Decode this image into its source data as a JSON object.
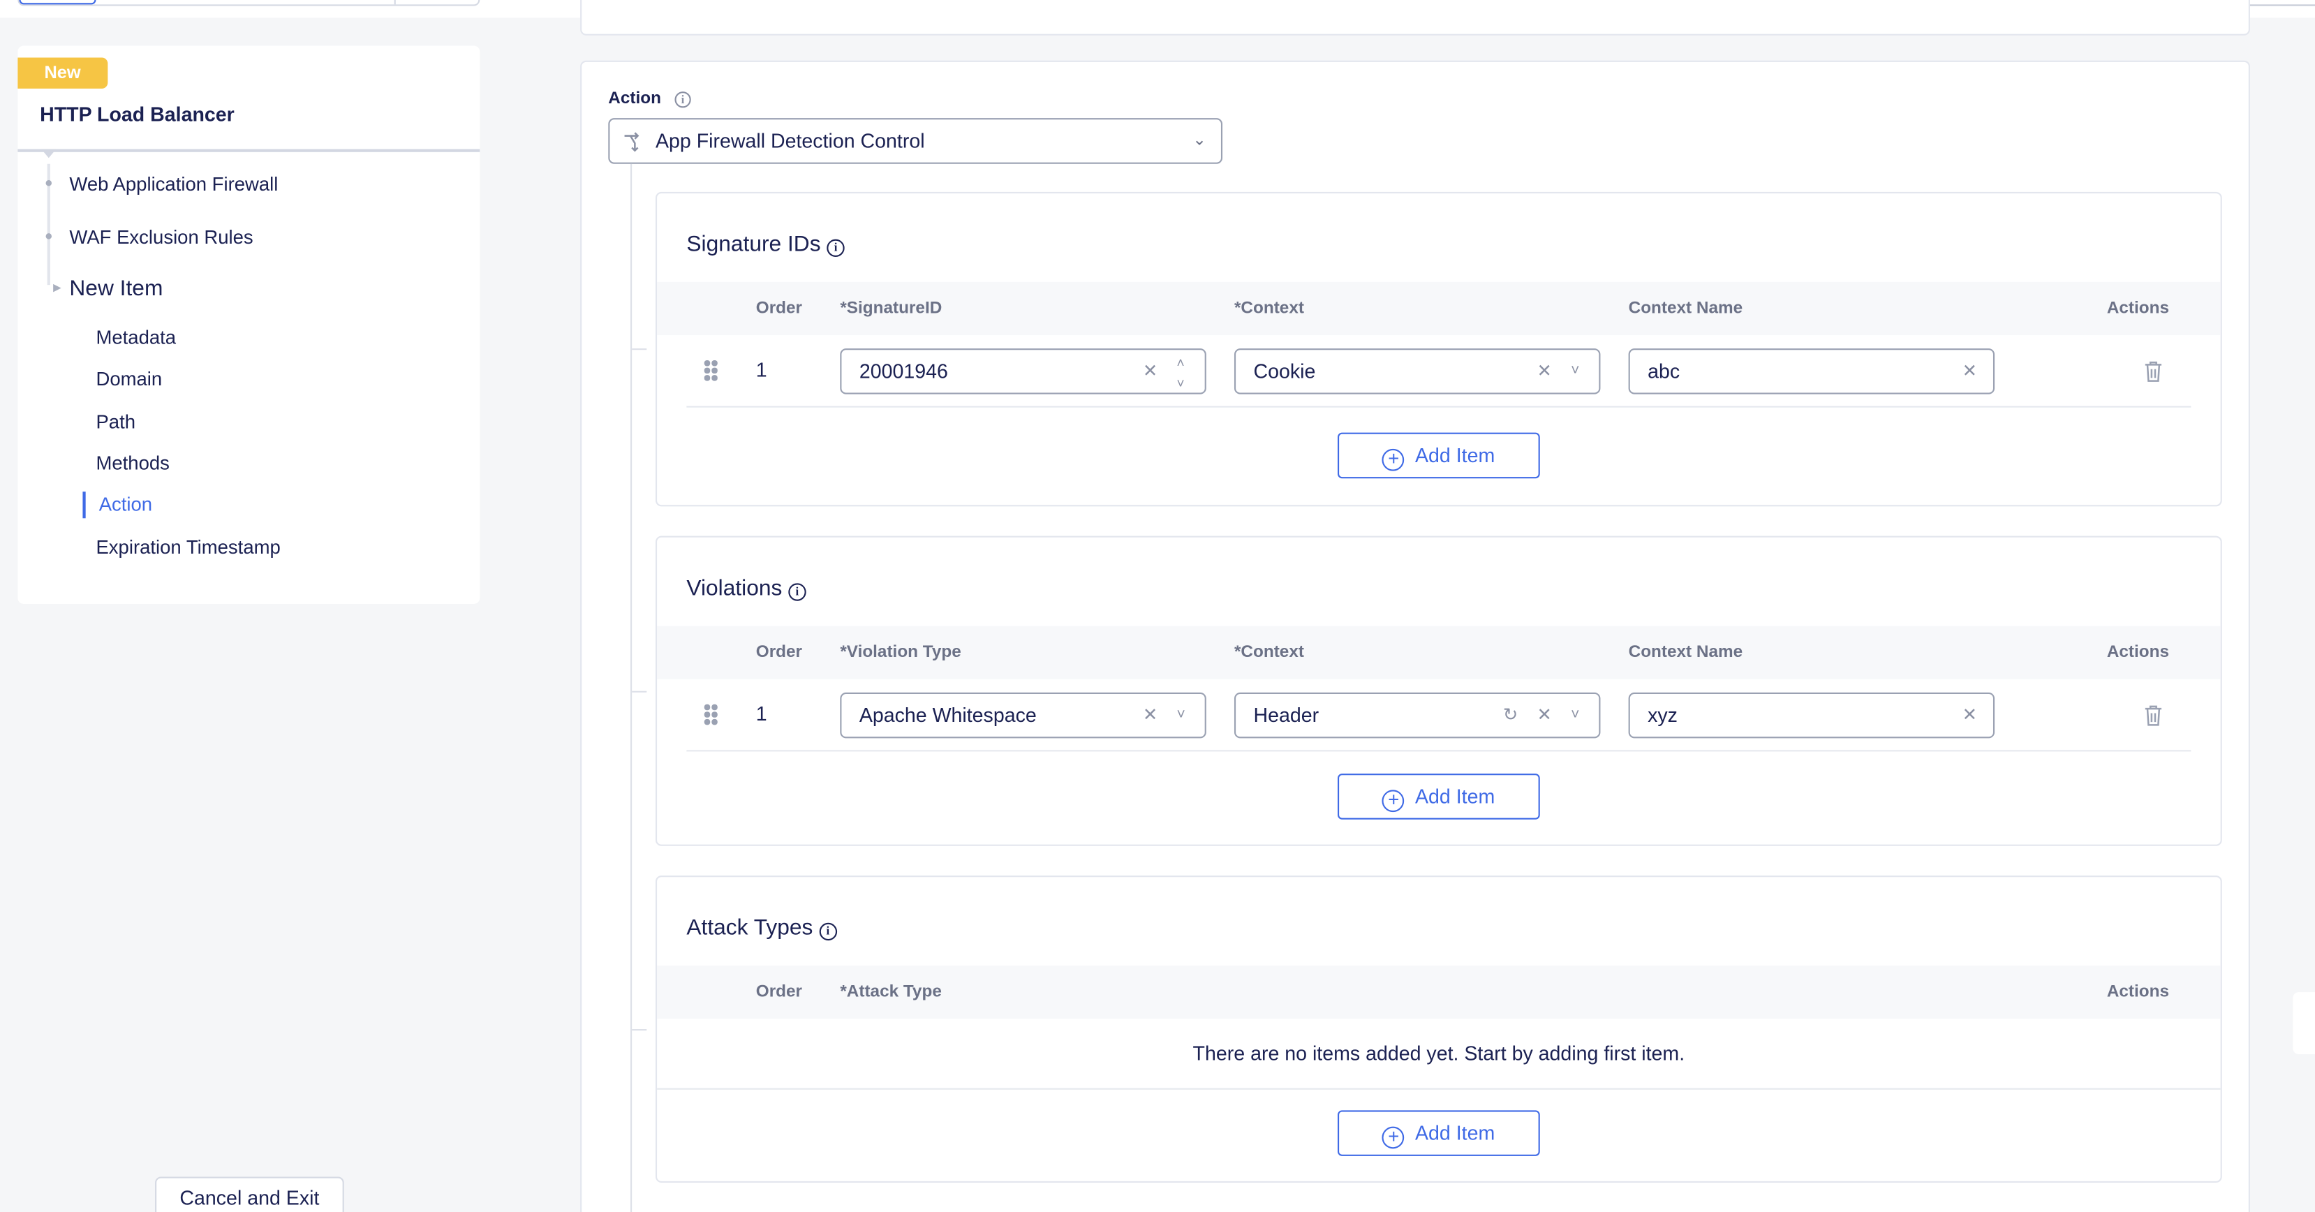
{
  "sidebar": {
    "badge": "New",
    "title": "HTTP Load Balancer",
    "items": [
      {
        "label": "Web Application Firewall"
      },
      {
        "label": "WAF Exclusion Rules"
      },
      {
        "label": "New Item"
      }
    ],
    "sub_items": [
      {
        "label": "Metadata"
      },
      {
        "label": "Domain"
      },
      {
        "label": "Path"
      },
      {
        "label": "Methods"
      },
      {
        "label": "Action",
        "active": true
      },
      {
        "label": "Expiration Timestamp"
      }
    ],
    "cancel_label": "Cancel and Exit"
  },
  "action": {
    "label": "Action",
    "value": "App Firewall Detection Control"
  },
  "signature_ids": {
    "title": "Signature IDs",
    "columns": [
      "Order",
      "*SignatureID",
      "*Context",
      "Context Name",
      "Actions"
    ],
    "rows": [
      {
        "order": "1",
        "signature_id": "20001946",
        "context": "Cookie",
        "context_name": "abc"
      }
    ],
    "add_label": "Add Item"
  },
  "violations": {
    "title": "Violations",
    "columns": [
      "Order",
      "*Violation Type",
      "*Context",
      "Context Name",
      "Actions"
    ],
    "rows": [
      {
        "order": "1",
        "violation_type": "Apache Whitespace",
        "context": "Header",
        "context_name": "xyz"
      }
    ],
    "add_label": "Add Item"
  },
  "attack_types": {
    "title": "Attack Types",
    "columns": [
      "Order",
      "*Attack Type",
      "Actions"
    ],
    "empty_text": "There are no items added yet. Start by adding first item.",
    "add_label": "Add Item"
  },
  "colors": {
    "accent": "#3f6ae6",
    "badge": "#f6c544",
    "text": "#1b2152"
  }
}
